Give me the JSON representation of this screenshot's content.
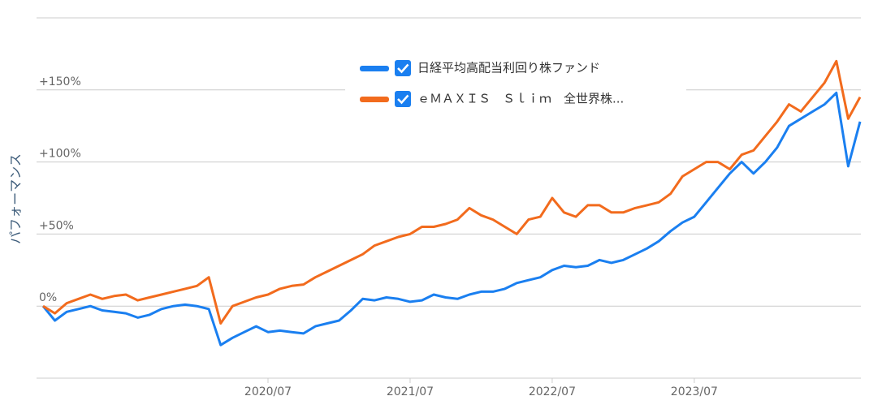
{
  "chart_data": {
    "type": "line",
    "y_label": "パフォーマンス",
    "x": [
      "2018/12",
      "2019/01",
      "2019/02",
      "2019/03",
      "2019/04",
      "2019/05",
      "2019/06",
      "2019/07",
      "2019/08",
      "2019/09",
      "2019/10",
      "2019/11",
      "2019/12",
      "2020/01",
      "2020/02",
      "2020/03",
      "2020/04",
      "2020/05",
      "2020/06",
      "2020/07",
      "2020/08",
      "2020/09",
      "2020/10",
      "2020/11",
      "2020/12",
      "2021/01",
      "2021/02",
      "2021/03",
      "2021/04",
      "2021/05",
      "2021/06",
      "2021/07",
      "2021/08",
      "2021/09",
      "2021/10",
      "2021/11",
      "2021/12",
      "2022/01",
      "2022/02",
      "2022/03",
      "2022/04",
      "2022/05",
      "2022/06",
      "2022/07",
      "2022/08",
      "2022/09",
      "2022/10",
      "2022/11",
      "2022/12",
      "2023/01",
      "2023/02",
      "2023/03",
      "2023/04",
      "2023/05",
      "2023/06",
      "2023/07",
      "2023/08",
      "2023/09",
      "2023/10",
      "2023/11",
      "2023/12",
      "2024/01",
      "2024/02",
      "2024/03",
      "2024/04",
      "2024/05",
      "2024/06",
      "2024/07",
      "2024/08",
      "2024/09"
    ],
    "xticks": [
      "2020/07",
      "2021/07",
      "2022/07",
      "2023/07"
    ],
    "series": [
      {
        "name": "日経平均高配当利回り株ファンド",
        "color": "#1a7ff0",
        "values": [
          0,
          -10,
          -4,
          -2,
          0,
          -3,
          -4,
          -5,
          -8,
          -6,
          -2,
          0,
          1,
          0,
          -2,
          -27,
          -22,
          -18,
          -14,
          -18,
          -17,
          -18,
          -19,
          -14,
          -12,
          -10,
          -3,
          5,
          4,
          6,
          5,
          3,
          4,
          8,
          6,
          5,
          8,
          10,
          10,
          12,
          16,
          18,
          20,
          25,
          28,
          27,
          28,
          32,
          30,
          32,
          36,
          40,
          45,
          52,
          58,
          62,
          72,
          82,
          92,
          100,
          92,
          100,
          110,
          125,
          130,
          135,
          140,
          148,
          97,
          128
        ]
      },
      {
        "name": "ｅＭＡＸＩＳ　Ｓｌｉｍ　全世界株...",
        "color": "#f26b1d",
        "values": [
          0,
          -5,
          2,
          5,
          8,
          5,
          7,
          8,
          4,
          6,
          8,
          10,
          12,
          14,
          20,
          -12,
          0,
          3,
          6,
          8,
          12,
          14,
          15,
          20,
          24,
          28,
          32,
          36,
          42,
          45,
          48,
          50,
          55,
          55,
          57,
          60,
          68,
          63,
          60,
          55,
          50,
          60,
          62,
          75,
          65,
          62,
          70,
          70,
          65,
          65,
          68,
          70,
          72,
          78,
          90,
          95,
          100,
          100,
          95,
          105,
          108,
          118,
          128,
          140,
          135,
          145,
          155,
          170,
          130,
          145
        ]
      }
    ],
    "ylim": [
      -50,
      200
    ],
    "yticks": [
      {
        "value": 0,
        "label": "0%"
      },
      {
        "value": 50,
        "label": "+50%"
      },
      {
        "value": 100,
        "label": "+100%"
      },
      {
        "value": 150,
        "label": "+150%"
      }
    ],
    "grid": true
  }
}
